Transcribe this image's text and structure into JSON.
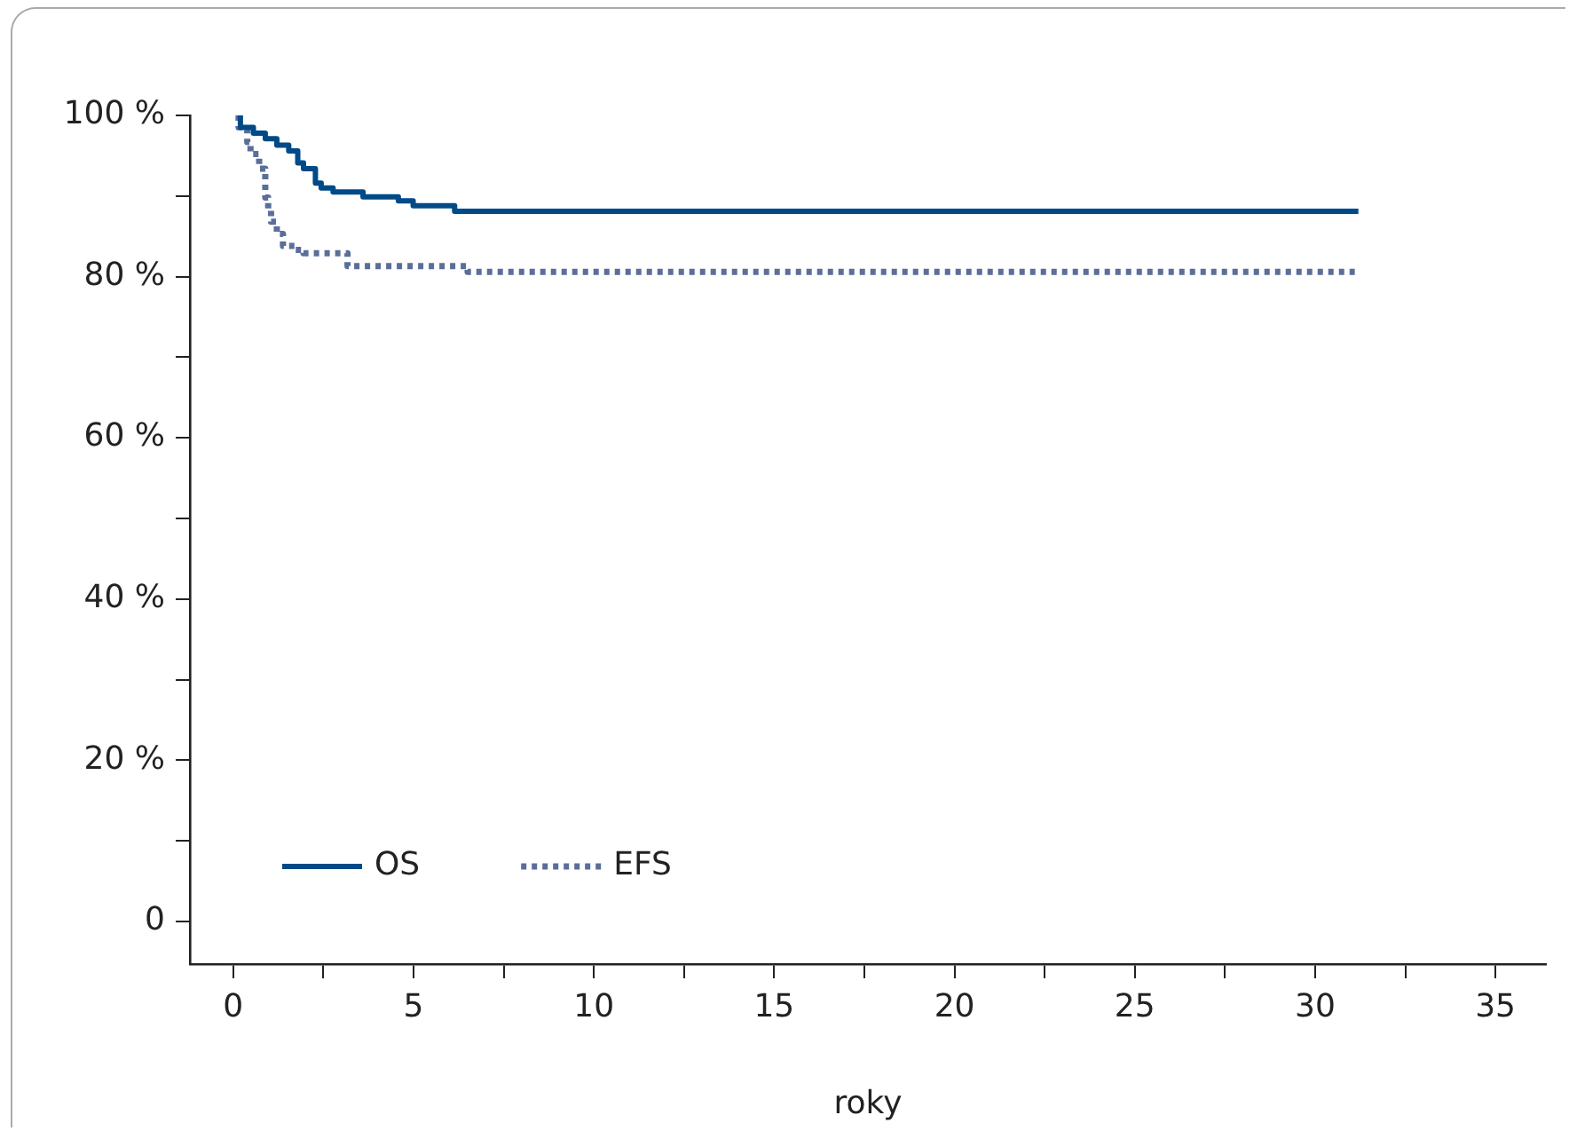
{
  "chart_data": {
    "type": "step",
    "xlabel": "roky",
    "xlim": [
      -1.2,
      36.4
    ],
    "ylim": [
      -5.3,
      100
    ],
    "xticks": [
      0,
      {
        "value": 2.5,
        "label": null
      },
      5,
      {
        "value": 7.5,
        "label": null
      },
      10,
      {
        "value": 12.5,
        "label": null
      },
      15,
      {
        "value": 17.5,
        "label": null
      },
      20,
      {
        "value": 22.5,
        "label": null
      },
      25,
      {
        "value": 27.5,
        "label": null
      },
      30,
      {
        "value": 32.5,
        "label": null
      },
      35
    ],
    "yticks": [
      {
        "value": 0,
        "label": "0"
      },
      {
        "value": 10,
        "label": null
      },
      {
        "value": 20,
        "label": "20 %"
      },
      {
        "value": 30,
        "label": null
      },
      {
        "value": 40,
        "label": "40 %"
      },
      {
        "value": 50,
        "label": null
      },
      {
        "value": 60,
        "label": "60 %"
      },
      {
        "value": 70,
        "label": null
      },
      {
        "value": 80,
        "label": "80 %"
      },
      {
        "value": 90,
        "label": null
      },
      {
        "value": 100,
        "label": "100 %"
      }
    ],
    "grid": false,
    "legend": "bottom left",
    "marker": "none",
    "series": [
      {
        "name": "OS",
        "color": "#004a88",
        "line_style": "solid",
        "x": [
          0.2,
          0.56,
          0.89,
          1.21,
          1.54,
          1.79,
          1.95,
          2.28,
          2.44,
          2.77,
          3.6,
          4.58,
          4.99,
          6.14,
          9.9,
          31.2
        ],
        "values": [
          100,
          98.5,
          97.8,
          97.1,
          96.3,
          95.6,
          94.1,
          93.4,
          91.6,
          91.0,
          90.5,
          89.9,
          89.4,
          88.8,
          88.1,
          88.1
        ]
      },
      {
        "name": "EFS",
        "color": "#5a6e99",
        "line_style": "dotted",
        "x": [
          0.15,
          0.39,
          0.48,
          0.72,
          0.89,
          0.97,
          1.05,
          1.21,
          1.38,
          1.71,
          1.95,
          3.17,
          6.5,
          14.1,
          31.1
        ],
        "values": [
          100,
          98.5,
          96.7,
          95.2,
          93.4,
          89.8,
          88.3,
          86.8,
          85.3,
          83.8,
          83.3,
          82.9,
          81.3,
          80.6,
          80.6
        ]
      }
    ]
  }
}
